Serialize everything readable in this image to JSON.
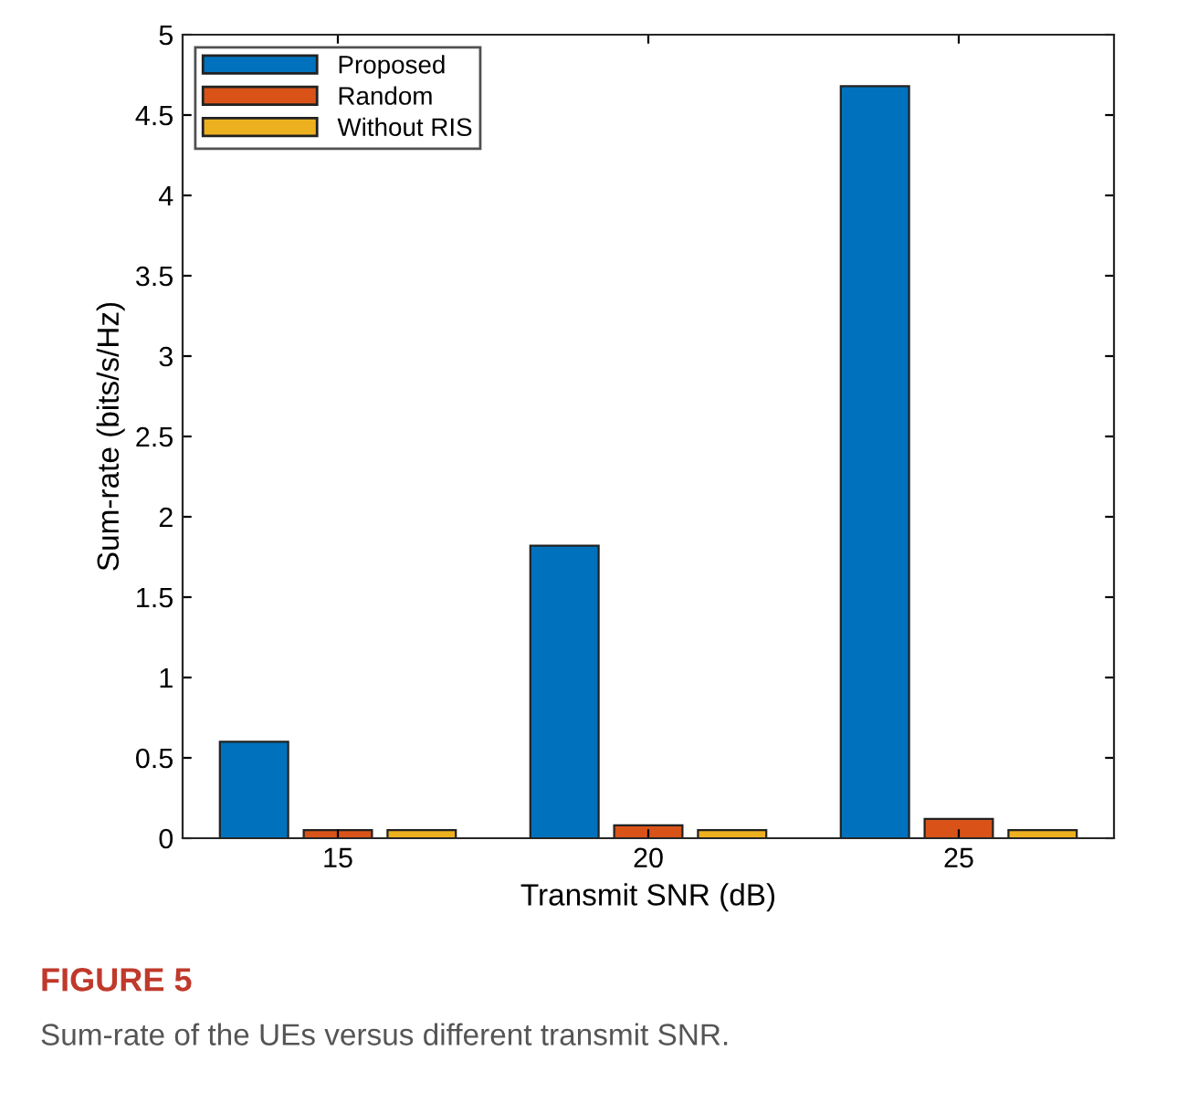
{
  "chart_data": {
    "type": "bar",
    "xlabel": "Transmit SNR (dB)",
    "ylabel": "Sum-rate (bits/s/Hz)",
    "categories": [
      "15",
      "20",
      "25"
    ],
    "series": [
      {
        "name": "Proposed",
        "color": "#0072bd",
        "values": [
          0.6,
          1.82,
          4.68
        ]
      },
      {
        "name": "Random",
        "color": "#d95319",
        "values": [
          0.05,
          0.08,
          0.12
        ]
      },
      {
        "name": "Without RIS",
        "color": "#edb120",
        "values": [
          0.05,
          0.05,
          0.05
        ]
      }
    ],
    "ylim": [
      0,
      5
    ],
    "yticks": [
      0,
      0.5,
      1,
      1.5,
      2,
      2.5,
      3,
      3.5,
      4,
      4.5,
      5
    ],
    "legend": "top left",
    "grid": false,
    "annotations": [
      "FIGURE 5",
      "Sum-rate of the UEs versus different transmit SNR."
    ]
  }
}
